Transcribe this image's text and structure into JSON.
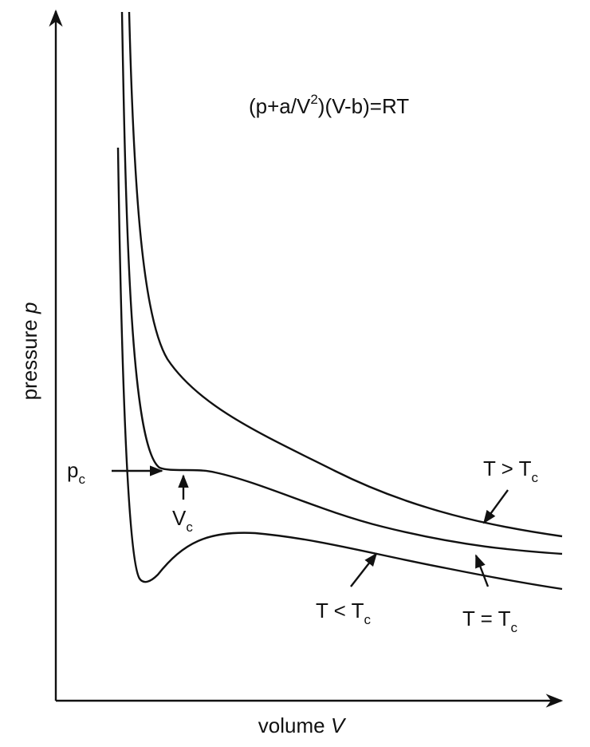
{
  "equation": {
    "before": "(p+a/V",
    "superscript": "2",
    "after": ")(V-b)=RT"
  },
  "axes": {
    "y": {
      "text": "pressure ",
      "variable": "p"
    },
    "x": {
      "text": "volume ",
      "variable": "V"
    }
  },
  "labels": {
    "critical_pressure": {
      "main": "p",
      "subscript": "c"
    },
    "critical_volume": {
      "main": "V",
      "subscript": "c"
    },
    "above_critical": {
      "main": "T > T",
      "subscript": "c"
    },
    "at_critical": {
      "main": "T = T",
      "subscript": "c"
    },
    "below_critical": {
      "main": "T < T",
      "subscript": "c"
    }
  }
}
